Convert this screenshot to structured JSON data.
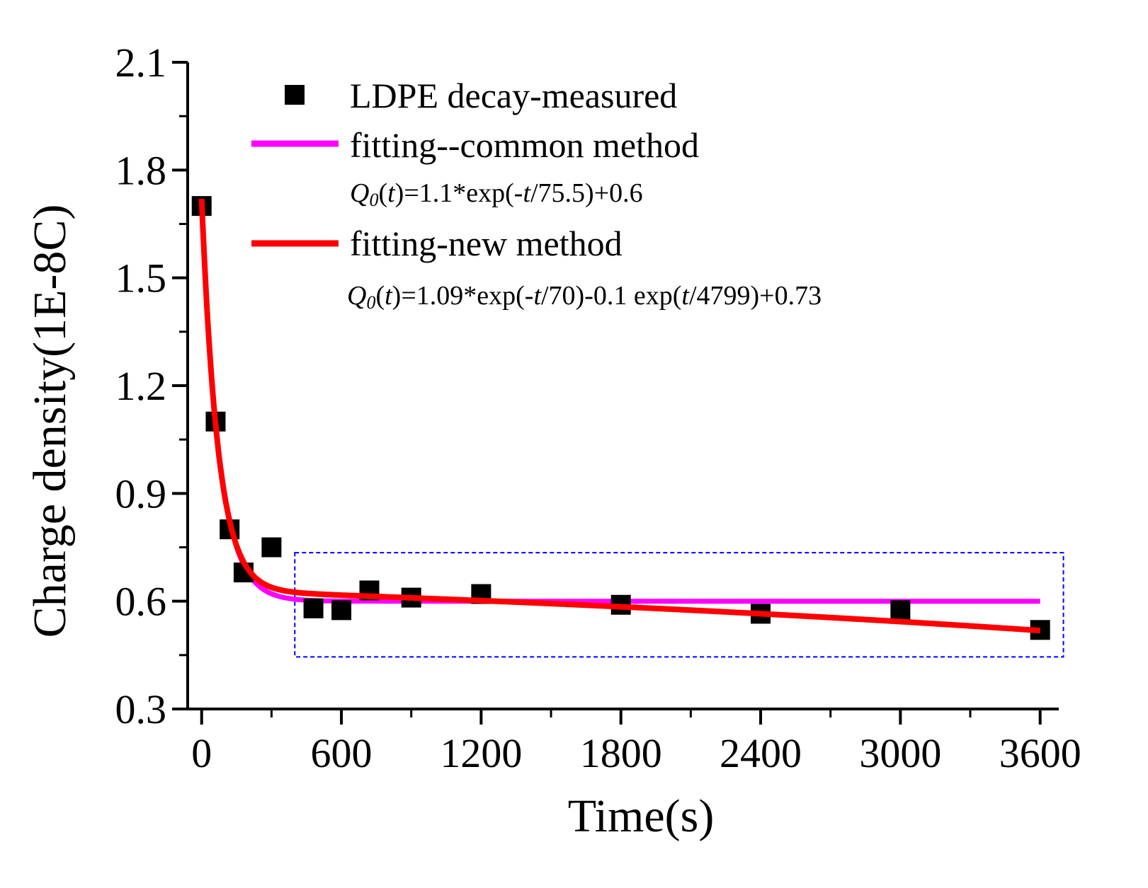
{
  "chart_data": {
    "type": "scatter",
    "title": "",
    "xlabel": "Time(s)",
    "ylabel": "Charge density(1E-8C)",
    "xlim": [
      -60,
      3680
    ],
    "ylim": [
      0.3,
      2.1
    ],
    "xticks": [
      0,
      600,
      1200,
      1800,
      2400,
      3000,
      3600
    ],
    "xtick_labels": [
      "0",
      "600",
      "1200",
      "1800",
      "2400",
      "3000",
      "3600"
    ],
    "yticks": [
      0.3,
      0.6,
      0.9,
      1.2,
      1.5,
      1.8,
      2.1
    ],
    "ytick_labels": [
      "0.3",
      "0.6",
      "0.9",
      "1.2",
      "1.5",
      "1.8",
      "2.1"
    ],
    "grid": false,
    "legend_position": "top-right",
    "series": [
      {
        "name": "LDPE decay-measured",
        "kind": "scatter",
        "marker": "square",
        "color": "#000000",
        "x": [
          0,
          60,
          120,
          180,
          300,
          480,
          600,
          720,
          900,
          1200,
          1800,
          2400,
          3000,
          3600
        ],
        "y": [
          1.7,
          1.1,
          0.8,
          0.68,
          0.75,
          0.58,
          0.575,
          0.63,
          0.61,
          0.62,
          0.59,
          0.565,
          0.575,
          0.52
        ]
      },
      {
        "name": "fitting--common method",
        "kind": "line",
        "color": "#ff00ff",
        "formula_parts": [
          "Q",
          "0",
          "(",
          "t",
          ")=1.1*exp(-",
          "t",
          "/75.5)+0.6"
        ],
        "params": {
          "a": 1.1,
          "tau": 75.5,
          "c": 0.6
        },
        "x_range": [
          0,
          3600
        ]
      },
      {
        "name": "fitting-new method",
        "kind": "line",
        "color": "#ff0000",
        "formula_parts": [
          "Q",
          "0",
          "(",
          "t",
          ")=1.09*exp(-",
          "t",
          "/70)-0.1 exp(",
          "t",
          "/4799)+0.73"
        ],
        "params": {
          "a": 1.09,
          "tau1": 70,
          "b": -0.1,
          "tau2": 4799,
          "c": 0.73
        },
        "x_range": [
          0,
          3600
        ]
      }
    ],
    "annotations": [
      {
        "type": "dashed-rectangle",
        "color": "#0000ff",
        "x_range": [
          400,
          3700
        ],
        "y_range": [
          0.445,
          0.735
        ]
      }
    ]
  }
}
